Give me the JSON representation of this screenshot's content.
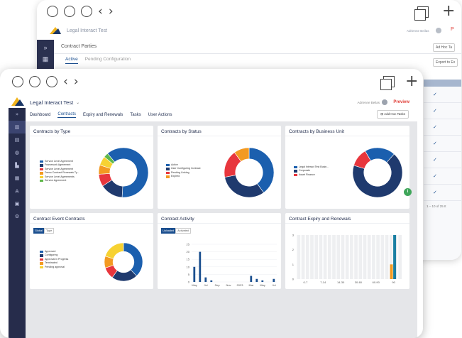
{
  "back_window": {
    "app_title": "Legal Interact Test",
    "user_name": "Adrienne Beilas",
    "section_title": "Contract Parties",
    "tabs": [
      {
        "label": "Active"
      },
      {
        "label": "Pending Configuration"
      }
    ],
    "add_task_label": "Ad Hoc Ta",
    "export_label": "Export to Ex",
    "pagination": "1 – 10 of 25 It"
  },
  "front_window": {
    "app_title": "Legal Interact Test",
    "user_name": "Adrienne Beilas",
    "preview_label": "Preview",
    "add_tasks_label": "Add Hoc Tasks",
    "tabs": [
      {
        "label": "Dashboard"
      },
      {
        "label": "Contracts"
      },
      {
        "label": "Expiry and Renewals"
      },
      {
        "label": "Tasks"
      },
      {
        "label": "User Actions"
      }
    ],
    "active_tab": "Contracts",
    "sidebar_icons": [
      "collapse-icon",
      "dashboard-icon",
      "documents-icon",
      "globe-icon",
      "library-icon",
      "building-icon",
      "org-chart-icon",
      "calculator-icon",
      "settings-icon"
    ]
  },
  "cards": {
    "by_type": {
      "title": "Contracts by Type",
      "legend": [
        {
          "label": "Service Level Agreement",
          "color": "#1b5fae"
        },
        {
          "label": "Framework Agreement",
          "color": "#1f3a6e"
        },
        {
          "label": "Service Level Agreement",
          "color": "#e8363d"
        },
        {
          "label": "Demo Contract Renewals Ty...",
          "color": "#f39a21"
        },
        {
          "label": "Service Level Agreements",
          "color": "#f7d232"
        },
        {
          "label": "Service Agreement",
          "color": "#5fb84a"
        }
      ]
    },
    "by_status": {
      "title": "Contracts by Status",
      "legend": [
        {
          "label": "Active",
          "color": "#1b5fae"
        },
        {
          "label": "User Configuring Contract",
          "color": "#1f3a6e"
        },
        {
          "label": "Pending Linking",
          "color": "#e8363d"
        },
        {
          "label": "Expired",
          "color": "#f39a21"
        }
      ]
    },
    "by_unit": {
      "title": "Contracts by Business Unit",
      "legend": [
        {
          "label": "Legal Interact Test Busin...",
          "color": "#1b5fae"
        },
        {
          "label": "Corporate",
          "color": "#1f3a6e"
        },
        {
          "label": "Asset Finance",
          "color": "#e8363d"
        }
      ]
    },
    "event": {
      "title": "Contract Event Contracts",
      "toggle": [
        "Global",
        "Type"
      ],
      "legend": [
        {
          "label": "Approved",
          "color": "#1b5fae"
        },
        {
          "label": "Configuring",
          "color": "#1f3a6e"
        },
        {
          "label": "Approval in Progress",
          "color": "#e8363d"
        },
        {
          "label": "Terminated",
          "color": "#f39a21"
        },
        {
          "label": "Pending approval",
          "color": "#f7d232"
        }
      ]
    },
    "activity": {
      "title": "Contract Activity",
      "toggle": [
        "Uploaded",
        "Activated"
      ]
    },
    "expiry": {
      "title": "Contract Expiry and Renewals"
    }
  },
  "chart_data": [
    {
      "type": "pie",
      "title": "Contracts by Type",
      "labels": [
        "Service Level Agreement",
        "Framework Agreement",
        "Service Level Agreement",
        "Demo Contract Renewals Ty...",
        "Service Level Agreements",
        "Service Agreement"
      ],
      "values": [
        62,
        15,
        8,
        6,
        6,
        3
      ],
      "colors": [
        "#1b5fae",
        "#1f3a6e",
        "#e8363d",
        "#f39a21",
        "#f7d232",
        "#5fb84a"
      ]
    },
    {
      "type": "pie",
      "title": "Contracts by Status",
      "labels": [
        "Active",
        "User Configuring Contract",
        "Pending Linking",
        "Expired"
      ],
      "values": [
        40,
        32,
        18,
        10
      ],
      "colors": [
        "#1b5fae",
        "#1f3a6e",
        "#e8363d",
        "#f39a21"
      ]
    },
    {
      "type": "pie",
      "title": "Contracts by Business Unit",
      "labels": [
        "Legal Interact Test Busin...",
        "Corporate",
        "Asset Finance"
      ],
      "values": [
        20,
        68,
        12
      ],
      "colors": [
        "#1b5fae",
        "#1f3a6e",
        "#e8363d"
      ]
    },
    {
      "type": "pie",
      "title": "Contract Event Contracts",
      "labels": [
        "Approved",
        "Configuring",
        "Approval in Progress",
        "Terminated",
        "Pending approval"
      ],
      "values": [
        38,
        22,
        10,
        10,
        20
      ],
      "colors": [
        "#1b5fae",
        "#1f3a6e",
        "#e8363d",
        "#f39a21",
        "#f7d232"
      ]
    },
    {
      "type": "bar",
      "title": "Contract Activity",
      "categories": [
        "May",
        "",
        "Jul",
        "",
        "Sep",
        "",
        "Nov",
        "",
        "2023",
        "",
        "Mar",
        "",
        "May",
        "",
        "Jul"
      ],
      "values": [
        10,
        20,
        3,
        0,
        0,
        0,
        0,
        0,
        0,
        0,
        0,
        0,
        0,
        0,
        0
      ],
      "series": [
        {
          "name": "Uploaded",
          "values": [
            10,
            20,
            3,
            1,
            0,
            0,
            0,
            0,
            0,
            0,
            4,
            2,
            1,
            0,
            2
          ]
        }
      ],
      "yticks": [
        0,
        5,
        10,
        15,
        20,
        25
      ],
      "xticks": [
        "May",
        "Jul",
        "Sep",
        "Nov",
        "2023",
        "Mar",
        "May",
        "Jul"
      ],
      "ylim": [
        0,
        25
      ]
    },
    {
      "type": "bar",
      "title": "Contract Expiry and Renewals",
      "categories": [
        "0-7",
        "7-14",
        "14-30",
        "30-60",
        "60-90",
        "90"
      ],
      "series": [
        {
          "name": "",
          "values": [
            0,
            0,
            0,
            0,
            0,
            1
          ],
          "color": "#f39a21"
        },
        {
          "name": "",
          "values": [
            0,
            0,
            0,
            0,
            0,
            3
          ],
          "color": "#1a7fa3"
        }
      ],
      "yticks": [
        0,
        1,
        2,
        3
      ],
      "ylim": [
        0,
        3
      ]
    }
  ]
}
